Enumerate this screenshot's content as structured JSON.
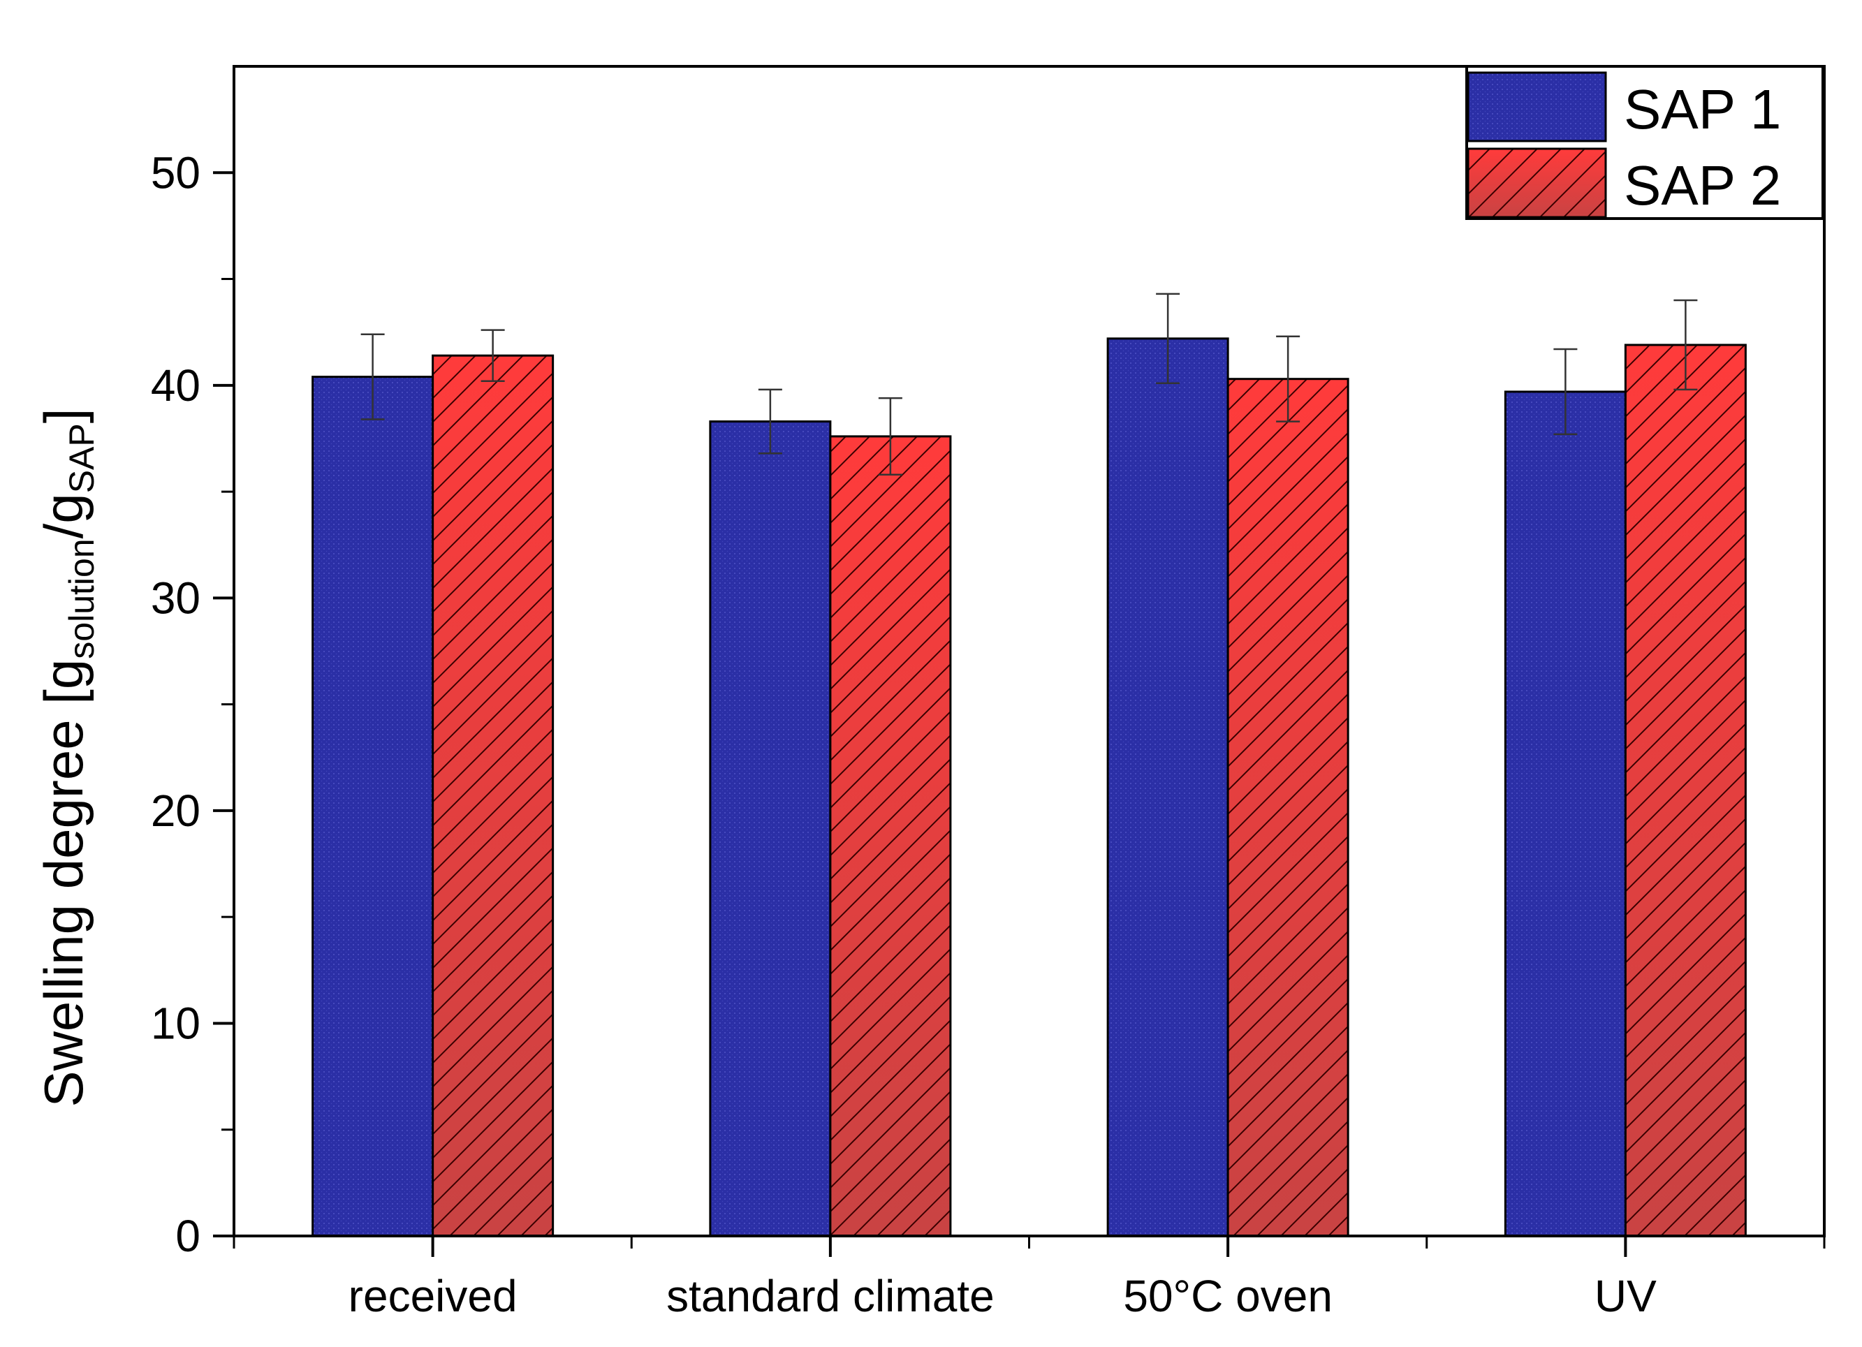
{
  "chart_data": {
    "type": "bar",
    "title": "",
    "xlabel": "",
    "ylabel": {
      "base": "Swelling degree [g",
      "sub1": "solution",
      "mid": "/g",
      "sub2": "SAP",
      "end": "]"
    },
    "ylim": [
      0,
      55
    ],
    "yticks": [
      0,
      10,
      20,
      30,
      40,
      50
    ],
    "categories": [
      "received",
      "standard climate",
      "50°C oven",
      "UV"
    ],
    "series": [
      {
        "name": "SAP 1",
        "color": "#2b2fa6",
        "pattern": "solid",
        "values": [
          40.4,
          38.3,
          42.2,
          39.7
        ],
        "errors": [
          2.0,
          1.5,
          2.1,
          2.0
        ]
      },
      {
        "name": "SAP 2",
        "color": "#ff4040",
        "pattern": "hatch",
        "values": [
          41.4,
          37.6,
          40.3,
          41.9
        ],
        "errors": [
          1.2,
          1.8,
          2.0,
          2.1
        ]
      }
    ],
    "grid": false,
    "legend": "top-right"
  }
}
